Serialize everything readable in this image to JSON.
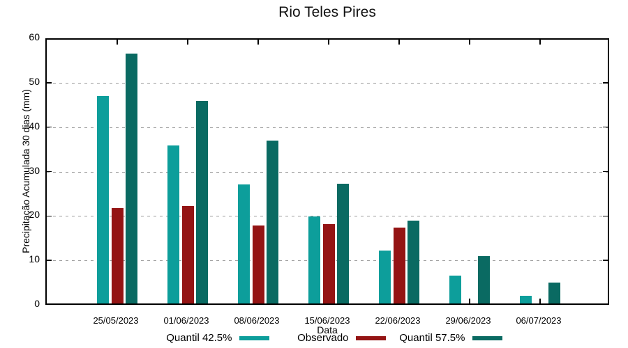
{
  "chart_data": {
    "type": "bar",
    "title": "Rio Teles Pires",
    "xlabel": "Data",
    "ylabel": "Precipitação Acumulada 30 dias (mm)",
    "ylim": [
      0,
      60
    ],
    "yticks": [
      0,
      10,
      20,
      30,
      40,
      50,
      60
    ],
    "grid": "horizontal dashed gray lines at 10,20,30,40,50",
    "legend_position": "bottom-center",
    "categories": [
      "25/05/2023",
      "01/06/2023",
      "08/06/2023",
      "15/06/2023",
      "22/06/2023",
      "29/06/2023",
      "06/07/2023"
    ],
    "series": [
      {
        "name": "Quantil 42.5%",
        "color": "#0D9E9B",
        "values": [
          46.7,
          35.6,
          26.8,
          19.6,
          11.9,
          6.3,
          1.7
        ]
      },
      {
        "name": "Observado",
        "color": "#941414",
        "values": [
          21.4,
          21.9,
          17.6,
          17.9,
          17.1,
          0,
          0
        ]
      },
      {
        "name": "Quantil 57.5%",
        "color": "#0A6A62",
        "values": [
          56.3,
          45.6,
          36.6,
          27.0,
          18.6,
          10.6,
          4.7
        ]
      }
    ],
    "colors": {
      "border": "#000000",
      "gridline": "#9a9a9a",
      "background": "#ffffff",
      "title_text": "#111111"
    }
  }
}
